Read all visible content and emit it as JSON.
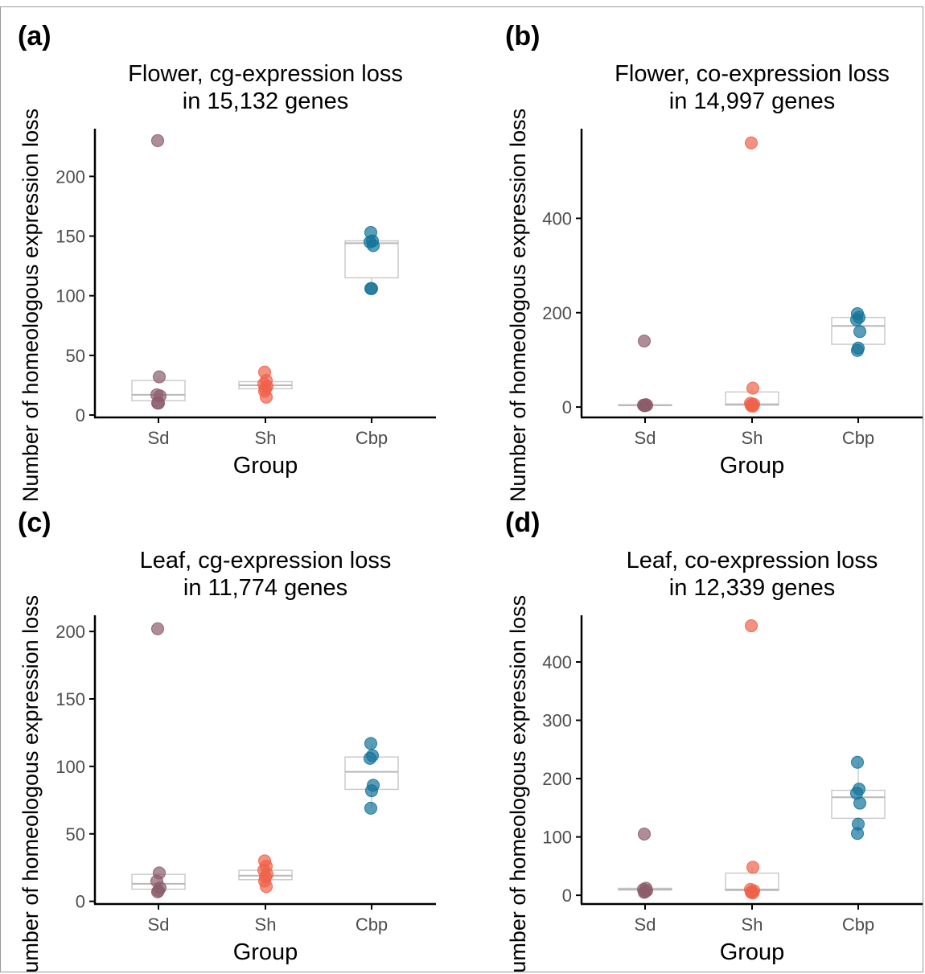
{
  "chart_data": [
    {
      "panel": "(a)",
      "type": "box-scatter",
      "title": [
        "Flower, cg-expression loss",
        "in 15,132 genes"
      ],
      "xlabel": "Group",
      "ylabel": "Number of homeologous expression loss",
      "categories": [
        "Sd",
        "Sh",
        "Cbp"
      ],
      "yticks": [
        0,
        50,
        100,
        150,
        200
      ],
      "ylim": [
        -2,
        240
      ],
      "colors": [
        "#8c5d6b",
        "#f0624a",
        "#14739a"
      ],
      "points": [
        [
          230,
          32,
          17,
          16,
          10,
          10
        ],
        [
          36,
          29,
          26,
          24,
          22,
          20,
          15
        ],
        [
          153,
          146,
          145,
          142,
          106,
          106
        ]
      ],
      "boxes": [
        {
          "lower": 10,
          "q1": 12,
          "median": 17,
          "q3": 29,
          "upper": 32
        },
        {
          "lower": 22,
          "q1": 22,
          "median": 25,
          "q3": 28,
          "upper": 29
        },
        {
          "lower": 106,
          "q1": 115,
          "median": 144,
          "q3": 146,
          "upper": 146
        }
      ]
    },
    {
      "panel": "(b)",
      "type": "box-scatter",
      "title": [
        "Flower, co-expression loss",
        "in 14,997 genes"
      ],
      "xlabel": "Group",
      "ylabel": "Number of homeologous expression loss",
      "categories": [
        "Sd",
        "Sh",
        "Cbp"
      ],
      "yticks": [
        0,
        200,
        400
      ],
      "ylim": [
        -22,
        590
      ],
      "colors": [
        "#8c5d6b",
        "#f0624a",
        "#14739a"
      ],
      "points": [
        [
          140,
          5,
          4,
          4,
          3,
          3
        ],
        [
          560,
          40,
          8,
          6,
          5,
          3,
          2
        ],
        [
          198,
          190,
          185,
          160,
          125,
          120
        ]
      ],
      "boxes": [
        {
          "lower": 3,
          "q1": 3,
          "median": 4,
          "q3": 5,
          "upper": 5
        },
        {
          "lower": 2,
          "q1": 4,
          "median": 6,
          "q3": 32,
          "upper": 40
        },
        {
          "lower": 120,
          "q1": 133,
          "median": 172,
          "q3": 190,
          "upper": 198
        }
      ]
    },
    {
      "panel": "(c)",
      "type": "box-scatter",
      "title": [
        "Leaf, cg-expression loss",
        "in 11,774 genes"
      ],
      "xlabel": "Group",
      "ylabel": "Number of homeologous expression loss",
      "categories": [
        "Sd",
        "Sh",
        "Cbp"
      ],
      "yticks": [
        0,
        50,
        100,
        150,
        200
      ],
      "ylim": [
        -2,
        212
      ],
      "colors": [
        "#8c5d6b",
        "#f0624a",
        "#14739a"
      ],
      "points": [
        [
          202,
          21,
          15,
          10,
          8,
          7
        ],
        [
          30,
          26,
          23,
          20,
          18,
          15,
          11
        ],
        [
          117,
          108,
          106,
          86,
          82,
          69
        ]
      ],
      "boxes": [
        {
          "lower": 7,
          "q1": 9,
          "median": 13,
          "q3": 20,
          "upper": 21
        },
        {
          "lower": 11,
          "q1": 16,
          "median": 19,
          "q3": 23,
          "upper": 30
        },
        {
          "lower": 69,
          "q1": 83,
          "median": 96,
          "q3": 107,
          "upper": 117
        }
      ]
    },
    {
      "panel": "(d)",
      "type": "box-scatter",
      "title": [
        "Leaf, co-expression loss",
        "in 12,339 genes"
      ],
      "xlabel": "Group",
      "ylabel": "Number of homeologous expression loss",
      "categories": [
        "Sd",
        "Sh",
        "Cbp"
      ],
      "yticks": [
        0,
        100,
        200,
        300,
        400
      ],
      "ylim": [
        -15,
        480
      ],
      "colors": [
        "#8c5d6b",
        "#f0624a",
        "#14739a"
      ],
      "points": [
        [
          105,
          12,
          10,
          8,
          6,
          5
        ],
        [
          462,
          48,
          10,
          8,
          6,
          5,
          4
        ],
        [
          228,
          182,
          175,
          158,
          122,
          106
        ]
      ],
      "boxes": [
        {
          "lower": 5,
          "q1": 9,
          "median": 10,
          "q3": 12,
          "upper": 12
        },
        {
          "lower": 4,
          "q1": 8,
          "median": 10,
          "q3": 38,
          "upper": 48
        },
        {
          "lower": 106,
          "q1": 132,
          "median": 168,
          "q3": 180,
          "upper": 228
        }
      ]
    }
  ]
}
